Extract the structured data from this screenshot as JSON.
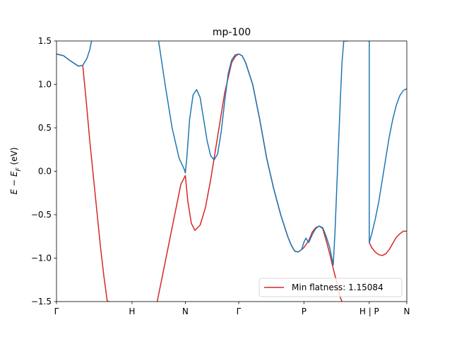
{
  "chart_data": {
    "type": "line",
    "title": "mp-100",
    "xlabel": "",
    "ylabel": "E − E_F (eV)",
    "ylim": [
      -1.5,
      1.5
    ],
    "yticks": [
      1.5,
      1.0,
      0.5,
      0.0,
      -0.5,
      -1.0,
      -1.5
    ],
    "ytick_labels": [
      "1.5",
      "1.0",
      "0.5",
      "0.0",
      "−0.5",
      "−1.0",
      "−1.5"
    ],
    "xlim": [
      0,
      1
    ],
    "high_symmetry_points": [
      {
        "label": "Γ",
        "x": 0.0
      },
      {
        "label": "H",
        "x": 0.2155
      },
      {
        "label": "N",
        "x": 0.3678
      },
      {
        "label": "Γ",
        "x": 0.5202
      },
      {
        "label": "P",
        "x": 0.7063
      },
      {
        "label": "H | P",
        "x": 0.8928
      },
      {
        "label": "N",
        "x": 1.0
      }
    ],
    "grid": false,
    "legend": {
      "location": "lower-right",
      "entries": [
        "Min flatness: 1.15084"
      ]
    },
    "colors": {
      "upper_band": "#1f77b4",
      "lower_band": "#d62728"
    },
    "series": [
      {
        "name": "",
        "color": "#1f77b4",
        "segments": [
          {
            "x": [
              0.0,
              0.02,
              0.04,
              0.0625,
              0.075,
              0.087,
              0.095,
              0.1
            ],
            "y": [
              1.35,
              1.33,
              1.27,
              1.21,
              1.22,
              1.3,
              1.4,
              1.5
            ]
          },
          {
            "x": [
              0.2915,
              0.31,
              0.33,
              0.35,
              0.365,
              0.3678,
              0.372,
              0.38,
              0.39,
              0.4,
              0.41,
              0.42,
              0.43,
              0.44,
              0.45,
              0.46,
              0.47,
              0.48,
              0.49,
              0.5,
              0.51,
              0.52,
              0.53,
              0.54,
              0.56,
              0.58,
              0.6,
              0.62,
              0.64,
              0.66,
              0.67,
              0.68,
              0.69,
              0.7,
              0.706,
              0.712,
              0.72,
              0.73,
              0.74,
              0.75,
              0.76,
              0.77,
              0.78,
              0.79,
              0.795,
              0.8,
              0.805,
              0.81,
              0.815,
              0.82,
              0.83
            ],
            "y": [
              1.5,
              1.0,
              0.5,
              0.15,
              0.02,
              -0.02,
              0.15,
              0.6,
              0.88,
              0.94,
              0.85,
              0.6,
              0.35,
              0.18,
              0.13,
              0.2,
              0.45,
              0.8,
              1.12,
              1.28,
              1.34,
              1.35,
              1.33,
              1.25,
              1.0,
              0.6,
              0.15,
              -0.2,
              -0.5,
              -0.75,
              -0.85,
              -0.92,
              -0.93,
              -0.9,
              -0.82,
              -0.77,
              -0.82,
              -0.73,
              -0.66,
              -0.63,
              -0.65,
              -0.75,
              -0.88,
              -1.08,
              -0.7,
              -0.2,
              0.3,
              0.8,
              1.25,
              1.5,
              1.5
            ]
          },
          {
            "x": [
              0.8928,
              0.8928
            ],
            "y": [
              1.5,
              -0.82
            ]
          },
          {
            "x": [
              0.8928,
              0.9,
              0.91,
              0.92,
              0.93,
              0.94,
              0.95,
              0.96,
              0.97,
              0.98,
              0.99,
              1.0
            ],
            "y": [
              -0.82,
              -0.72,
              -0.55,
              -0.35,
              -0.1,
              0.15,
              0.4,
              0.6,
              0.76,
              0.87,
              0.93,
              0.95
            ]
          }
        ]
      },
      {
        "name": "Min flatness: 1.15084",
        "color": "#d62728",
        "segments": [
          {
            "x": [
              0.0,
              0.02,
              0.04,
              0.0625,
              0.075,
              0.085,
              0.095,
              0.105,
              0.115,
              0.125,
              0.135,
              0.145,
              0.15
            ],
            "y": [
              1.35,
              1.33,
              1.27,
              1.21,
              1.22,
              0.8,
              0.35,
              -0.05,
              -0.45,
              -0.85,
              -1.2,
              -1.5,
              -1.5
            ]
          },
          {
            "x": [
              0.2875,
              0.3,
              0.32,
              0.34,
              0.355,
              0.3678,
              0.375,
              0.385,
              0.395,
              0.41,
              0.425,
              0.44,
              0.46,
              0.48,
              0.5,
              0.51,
              0.52,
              0.53,
              0.54,
              0.56,
              0.58,
              0.6,
              0.62,
              0.64,
              0.66,
              0.67,
              0.68,
              0.69,
              0.7,
              0.706,
              0.72,
              0.73,
              0.74,
              0.75,
              0.76,
              0.77,
              0.78,
              0.79,
              0.8,
              0.81,
              0.815
            ],
            "y": [
              -1.5,
              -1.25,
              -0.85,
              -0.45,
              -0.15,
              -0.05,
              -0.35,
              -0.6,
              -0.68,
              -0.62,
              -0.42,
              -0.1,
              0.4,
              0.9,
              1.25,
              1.32,
              1.35,
              1.33,
              1.25,
              1.0,
              0.6,
              0.15,
              -0.2,
              -0.5,
              -0.75,
              -0.85,
              -0.92,
              -0.93,
              -0.9,
              -0.88,
              -0.8,
              -0.7,
              -0.65,
              -0.63,
              -0.66,
              -0.8,
              -0.95,
              -1.12,
              -1.28,
              -1.45,
              -1.5
            ]
          },
          {
            "x": [
              0.8928,
              0.9,
              0.91,
              0.92,
              0.93,
              0.94,
              0.95,
              0.96,
              0.97,
              0.98,
              0.99,
              1.0
            ],
            "y": [
              -0.82,
              -0.88,
              -0.93,
              -0.96,
              -0.97,
              -0.95,
              -0.9,
              -0.83,
              -0.76,
              -0.72,
              -0.69,
              -0.69
            ]
          }
        ]
      }
    ]
  }
}
